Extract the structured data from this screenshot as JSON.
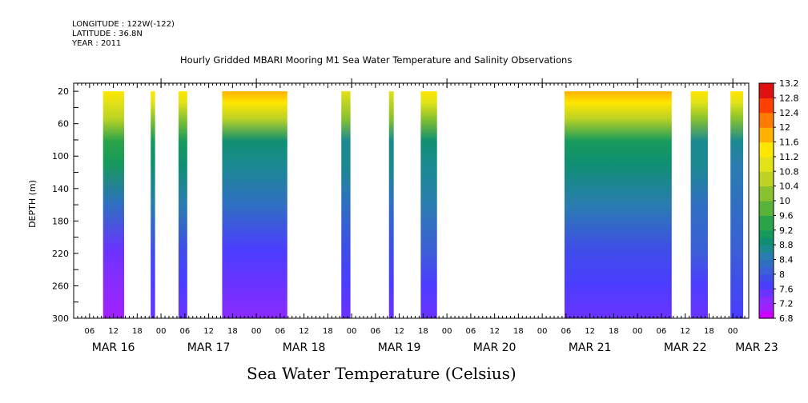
{
  "header": {
    "longitude": "LONGITUDE : 122W(-122)",
    "latitude": "LATITUDE : 36.8N",
    "year": "YEAR : 2011"
  },
  "chart_data": {
    "type": "heatmap",
    "title": "Hourly Gridded MBARI Mooring M1 Sea Water Temperature and Salinity Observations",
    "xlabel": "",
    "ylabel": "DEPTH (m)",
    "caption": "Sea Water Temperature (Celsius)",
    "x_unit": "hours since MAR 16 00:00 (2011)",
    "xlim": [
      2,
      172
    ],
    "ylim": [
      300,
      10
    ],
    "y_ticks": [
      20,
      60,
      100,
      140,
      180,
      220,
      260,
      300
    ],
    "x_hour_ticks": [
      {
        "h": 6,
        "label": "06"
      },
      {
        "h": 12,
        "label": "12"
      },
      {
        "h": 18,
        "label": "18"
      },
      {
        "h": 24,
        "label": "00"
      },
      {
        "h": 30,
        "label": "06"
      },
      {
        "h": 36,
        "label": "12"
      },
      {
        "h": 42,
        "label": "18"
      },
      {
        "h": 48,
        "label": "00"
      },
      {
        "h": 54,
        "label": "06"
      },
      {
        "h": 60,
        "label": "12"
      },
      {
        "h": 66,
        "label": "18"
      },
      {
        "h": 72,
        "label": "00"
      },
      {
        "h": 78,
        "label": "06"
      },
      {
        "h": 84,
        "label": "12"
      },
      {
        "h": 90,
        "label": "18"
      },
      {
        "h": 96,
        "label": "00"
      },
      {
        "h": 102,
        "label": "06"
      },
      {
        "h": 108,
        "label": "12"
      },
      {
        "h": 114,
        "label": "18"
      },
      {
        "h": 120,
        "label": "00"
      },
      {
        "h": 126,
        "label": "06"
      },
      {
        "h": 132,
        "label": "12"
      },
      {
        "h": 138,
        "label": "18"
      },
      {
        "h": 144,
        "label": "00"
      },
      {
        "h": 150,
        "label": "06"
      },
      {
        "h": 156,
        "label": "12"
      },
      {
        "h": 162,
        "label": "18"
      },
      {
        "h": 168,
        "label": "00"
      }
    ],
    "date_labels": [
      {
        "h": 12,
        "label": "MAR 16"
      },
      {
        "h": 36,
        "label": "MAR 17"
      },
      {
        "h": 60,
        "label": "MAR 18"
      },
      {
        "h": 84,
        "label": "MAR 19"
      },
      {
        "h": 108,
        "label": "MAR 20"
      },
      {
        "h": 132,
        "label": "MAR 21"
      },
      {
        "h": 156,
        "label": "MAR 22"
      },
      {
        "h": 174,
        "label": "MAR 23"
      }
    ],
    "segments": [
      {
        "start": 9.4,
        "end": 14.7,
        "surface": 11.4,
        "mid": 9.0,
        "bottom": 7.0
      },
      {
        "start": 21.4,
        "end": 22.5,
        "surface": 11.2,
        "mid": 8.9,
        "bottom": 7.4
      },
      {
        "start": 28.4,
        "end": 30.6,
        "surface": 11.3,
        "mid": 8.8,
        "bottom": 7.4
      },
      {
        "start": 39.4,
        "end": 55.8,
        "surface": 11.6,
        "mid": 8.7,
        "bottom": 7.2
      },
      {
        "start": 69.4,
        "end": 71.7,
        "surface": 11.0,
        "mid": 8.6,
        "bottom": 7.4
      },
      {
        "start": 81.4,
        "end": 82.6,
        "surface": 11.0,
        "mid": 8.6,
        "bottom": 7.4
      },
      {
        "start": 89.4,
        "end": 93.5,
        "surface": 11.3,
        "mid": 8.7,
        "bottom": 7.5
      },
      {
        "start": 125.6,
        "end": 152.6,
        "surface": 11.8,
        "mid": 8.8,
        "bottom": 7.4
      },
      {
        "start": 157.4,
        "end": 161.7,
        "surface": 11.3,
        "mid": 8.6,
        "bottom": 7.5
      },
      {
        "start": 167.4,
        "end": 170.6,
        "surface": 11.2,
        "mid": 8.5,
        "bottom": 7.6
      }
    ],
    "colorbar": {
      "labels": [
        "13.2",
        "12.8",
        "12.4",
        "12",
        "11.6",
        "11.2",
        "10.8",
        "10.4",
        "10",
        "9.6",
        "9.2",
        "8.8",
        "8.4",
        "8",
        "7.6",
        "7.2",
        "6.8"
      ],
      "levels": [
        {
          "v": 6.8,
          "c": "#cc00ff"
        },
        {
          "v": 7.0,
          "c": "#a020ff"
        },
        {
          "v": 7.2,
          "c": "#8a2bff"
        },
        {
          "v": 7.4,
          "c": "#6a33ff"
        },
        {
          "v": 7.6,
          "c": "#4b3dff"
        },
        {
          "v": 7.8,
          "c": "#3f4de8"
        },
        {
          "v": 8.0,
          "c": "#3b5fd6"
        },
        {
          "v": 8.2,
          "c": "#2f6fc2"
        },
        {
          "v": 8.4,
          "c": "#2a7db0"
        },
        {
          "v": 8.6,
          "c": "#1a8a90"
        },
        {
          "v": 8.8,
          "c": "#0f8f72"
        },
        {
          "v": 9.0,
          "c": "#169a5c"
        },
        {
          "v": 9.2,
          "c": "#2aa44a"
        },
        {
          "v": 9.6,
          "c": "#58b33a"
        },
        {
          "v": 10.0,
          "c": "#88c22e"
        },
        {
          "v": 10.4,
          "c": "#bcd324"
        },
        {
          "v": 10.8,
          "c": "#e2e218"
        },
        {
          "v": 11.2,
          "c": "#ffe600"
        },
        {
          "v": 11.6,
          "c": "#ffb000"
        },
        {
          "v": 12.0,
          "c": "#ff7a00"
        },
        {
          "v": 12.4,
          "c": "#ff4000"
        },
        {
          "v": 12.8,
          "c": "#e01010"
        },
        {
          "v": 13.2,
          "c": "#a00000"
        }
      ]
    }
  }
}
